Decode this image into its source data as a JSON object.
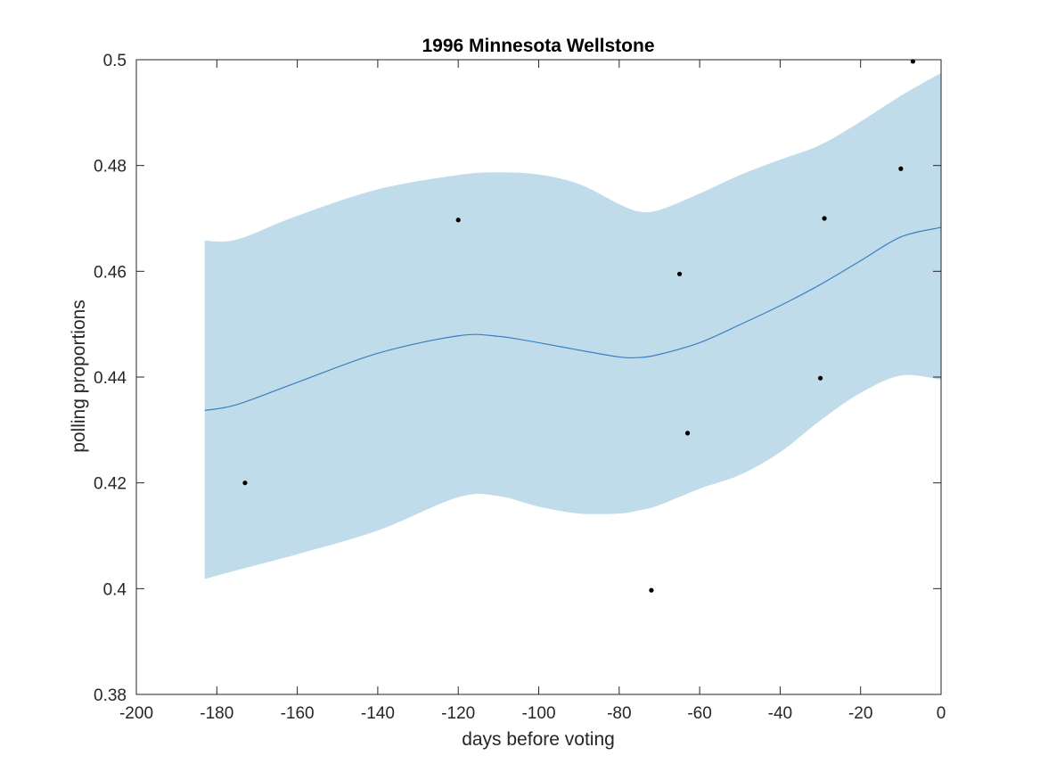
{
  "chart_data": {
    "type": "line",
    "title": "1996 Minnesota Wellstone",
    "xlabel": "days before voting",
    "ylabel": "polling proportions",
    "xlim": [
      -200,
      0
    ],
    "ylim": [
      0.38,
      0.5
    ],
    "x_ticks": [
      -200,
      -180,
      -160,
      -140,
      -120,
      -100,
      -80,
      -60,
      -40,
      -20,
      0
    ],
    "x_tick_labels": [
      "-200",
      "-180",
      "-160",
      "-140",
      "-120",
      "-100",
      "-80",
      "-60",
      "-40",
      "-20",
      "0"
    ],
    "y_ticks": [
      0.38,
      0.4,
      0.42,
      0.44,
      0.46,
      0.48,
      0.5
    ],
    "y_tick_labels": [
      "0.38",
      "0.4",
      "0.42",
      "0.44",
      "0.46",
      "0.48",
      "0.5"
    ],
    "grid": false,
    "colors": {
      "band": "#c0dcea",
      "line": "#3a7fc1",
      "points": "#000000",
      "axes": "#262626"
    },
    "band": {
      "x": [
        -183,
        -175,
        -160,
        -140,
        -120,
        -110,
        -100,
        -90,
        -80,
        -75,
        -70,
        -60,
        -50,
        -40,
        -30,
        -20,
        -10,
        0
      ],
      "upper": [
        0.4658,
        0.466,
        0.4705,
        0.4755,
        0.4782,
        0.4787,
        0.4783,
        0.4765,
        0.4727,
        0.4713,
        0.4716,
        0.4747,
        0.4782,
        0.4811,
        0.4839,
        0.4883,
        0.4932,
        0.4975
      ],
      "lower": [
        0.4018,
        0.4035,
        0.4065,
        0.411,
        0.4173,
        0.4175,
        0.4155,
        0.4142,
        0.4142,
        0.4148,
        0.4158,
        0.4189,
        0.4215,
        0.4258,
        0.4318,
        0.437,
        0.4403,
        0.4395
      ]
    },
    "series": [
      {
        "x": [
          -183,
          -175,
          -160,
          -140,
          -120,
          -110,
          -100,
          -90,
          -80,
          -75,
          -70,
          -60,
          -50,
          -40,
          -30,
          -20,
          -10,
          0
        ],
        "values": [
          0.4337,
          0.4348,
          0.439,
          0.4445,
          0.4478,
          0.4477,
          0.4465,
          0.4451,
          0.4438,
          0.4437,
          0.4443,
          0.4465,
          0.4499,
          0.4535,
          0.4575,
          0.462,
          0.4665,
          0.4683
        ]
      }
    ],
    "points": [
      {
        "x": -173,
        "y": 0.42
      },
      {
        "x": -120,
        "y": 0.4697
      },
      {
        "x": -72,
        "y": 0.3997
      },
      {
        "x": -65,
        "y": 0.4595
      },
      {
        "x": -63,
        "y": 0.4294
      },
      {
        "x": -30,
        "y": 0.4398
      },
      {
        "x": -29,
        "y": 0.47
      },
      {
        "x": -10,
        "y": 0.4794
      },
      {
        "x": -7,
        "y": 0.4997
      }
    ]
  }
}
